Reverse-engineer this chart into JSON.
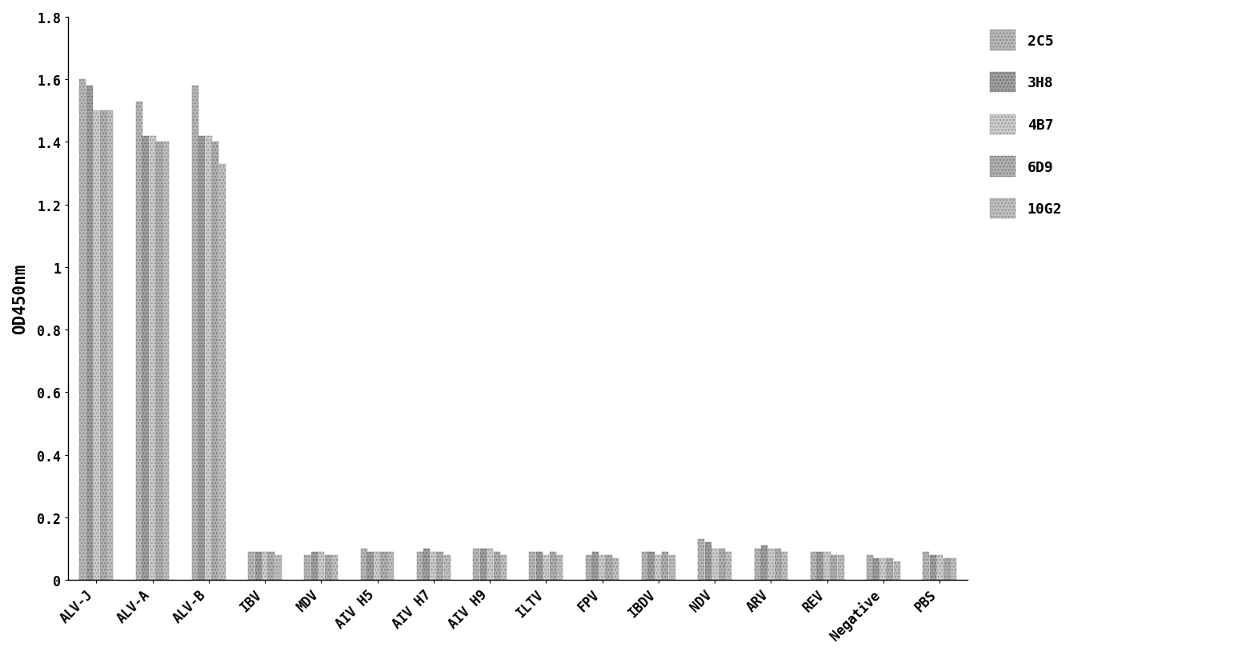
{
  "categories": [
    "ALV-J",
    "ALV-A",
    "ALV-B",
    "IBV",
    "MDV",
    "AIV H5",
    "AIV H7",
    "AIV H9",
    "ILTV",
    "FPV",
    "IBDV",
    "NDV",
    "ARV",
    "REV",
    "Negative",
    "PBS"
  ],
  "series": {
    "2C5": [
      1.6,
      1.53,
      1.58,
      0.09,
      0.08,
      0.1,
      0.09,
      0.1,
      0.09,
      0.08,
      0.09,
      0.13,
      0.1,
      0.09,
      0.08,
      0.09
    ],
    "3H8": [
      1.58,
      1.42,
      1.42,
      0.09,
      0.09,
      0.09,
      0.1,
      0.1,
      0.09,
      0.09,
      0.09,
      0.12,
      0.11,
      0.09,
      0.07,
      0.08
    ],
    "4B7": [
      1.5,
      1.42,
      1.42,
      0.09,
      0.09,
      0.09,
      0.09,
      0.1,
      0.08,
      0.08,
      0.08,
      0.1,
      0.1,
      0.09,
      0.07,
      0.08
    ],
    "6D9": [
      1.5,
      1.4,
      1.4,
      0.09,
      0.08,
      0.09,
      0.09,
      0.09,
      0.09,
      0.08,
      0.09,
      0.1,
      0.1,
      0.08,
      0.07,
      0.07
    ],
    "10G2": [
      1.5,
      1.4,
      1.33,
      0.08,
      0.08,
      0.09,
      0.08,
      0.08,
      0.08,
      0.07,
      0.08,
      0.09,
      0.09,
      0.08,
      0.06,
      0.07
    ]
  },
  "series_order": [
    "2C5",
    "3H8",
    "4B7",
    "6D9",
    "10G2"
  ],
  "ylabel": "OD450nm",
  "ylim": [
    0,
    1.8
  ],
  "yticks": [
    0,
    0.2,
    0.4,
    0.6,
    0.8,
    1.0,
    1.2,
    1.4,
    1.6,
    1.8
  ],
  "background_color": "#ffffff",
  "bar_width": 0.12,
  "legend_fontsize": 13,
  "axis_fontsize": 15,
  "tick_fontsize": 12
}
